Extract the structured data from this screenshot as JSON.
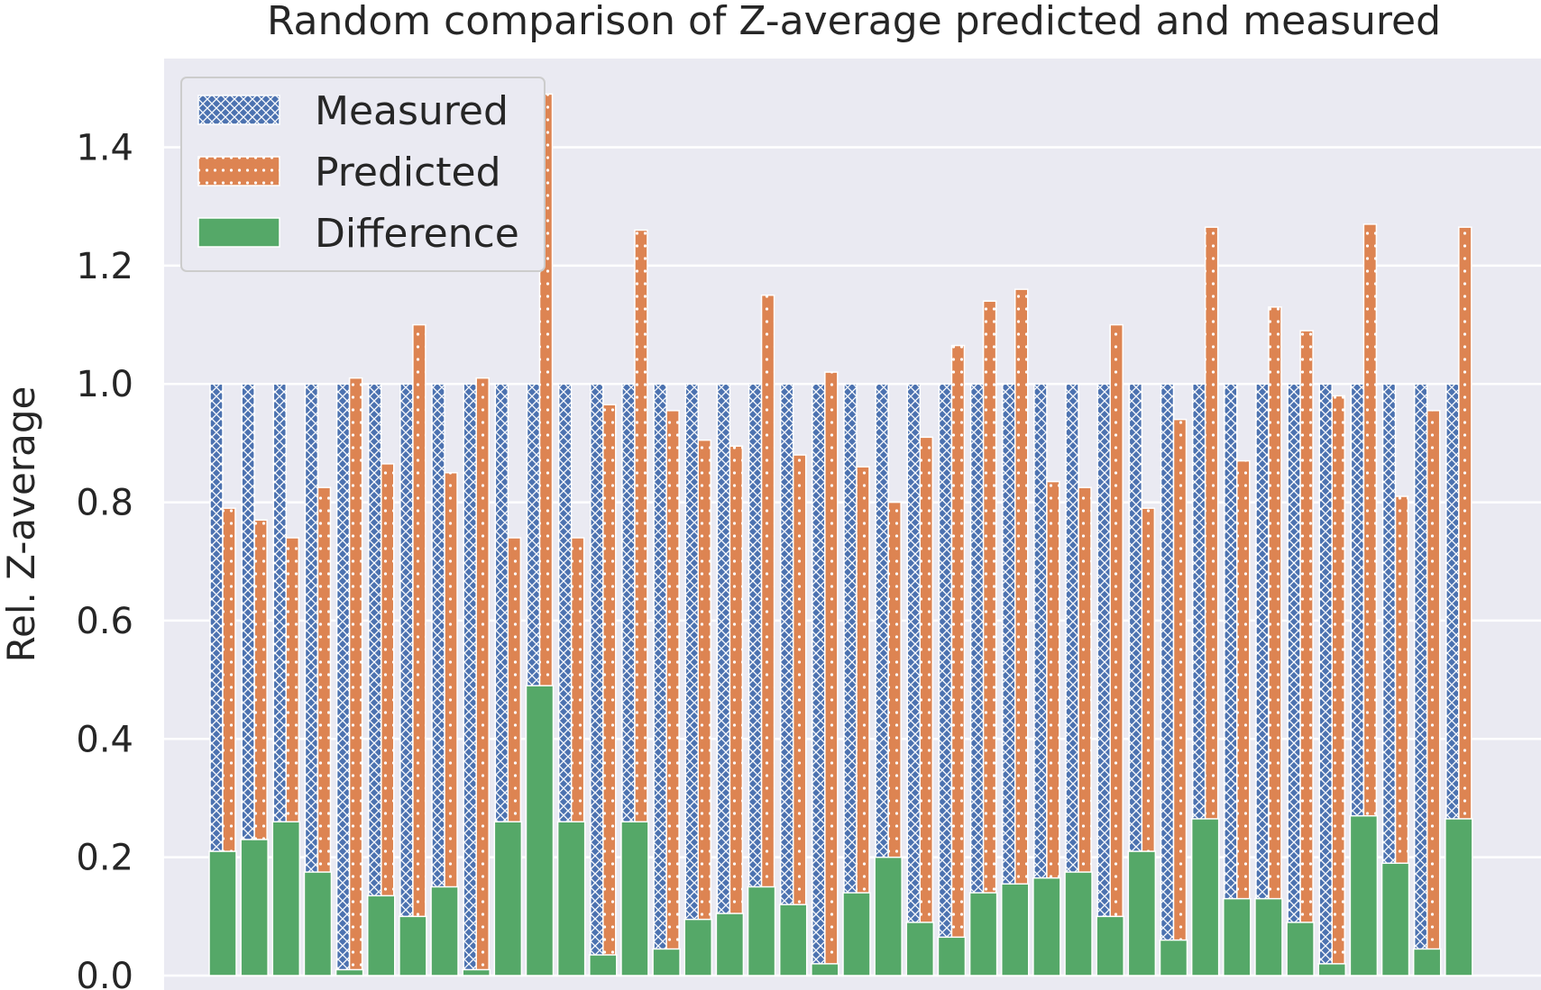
{
  "chart_data": {
    "type": "bar",
    "title": "Random comparison of Z-average predicted and measured",
    "xlabel": "",
    "ylabel": "Rel. Z-average",
    "ylim": [
      0,
      1.55
    ],
    "yticks": [
      "0.0",
      "0.2",
      "0.4",
      "0.6",
      "0.8",
      "1.0",
      "1.2",
      "1.4"
    ],
    "grid": true,
    "legend_position": "top-left",
    "n_samples": 40,
    "series": [
      {
        "name": "Measured",
        "color": "#4c72b0",
        "hatch": "crosshatch",
        "values": [
          1.0,
          1.0,
          1.0,
          1.0,
          1.0,
          1.0,
          1.0,
          1.0,
          1.0,
          1.0,
          1.0,
          1.0,
          1.0,
          1.0,
          1.0,
          1.0,
          1.0,
          1.0,
          1.0,
          1.0,
          1.0,
          1.0,
          1.0,
          1.0,
          1.0,
          1.0,
          1.0,
          1.0,
          1.0,
          1.0,
          1.0,
          1.0,
          1.0,
          1.0,
          1.0,
          1.0,
          1.0,
          1.0,
          1.0,
          1.0
        ]
      },
      {
        "name": "Predicted",
        "color": "#dd8452",
        "hatch": "dots",
        "values": [
          0.79,
          0.77,
          0.74,
          0.825,
          1.01,
          0.865,
          1.1,
          0.85,
          1.01,
          0.74,
          1.49,
          0.74,
          0.965,
          1.26,
          0.955,
          0.905,
          0.895,
          1.15,
          0.88,
          1.02,
          0.86,
          0.8,
          0.91,
          1.065,
          1.14,
          1.16,
          0.835,
          0.825,
          1.1,
          0.79,
          0.94,
          1.265,
          0.87,
          1.13,
          1.09,
          0.98,
          1.27,
          0.81,
          0.955,
          1.265
        ]
      },
      {
        "name": "Difference",
        "color": "#55a868",
        "hatch": "none",
        "values": [
          0.21,
          0.23,
          0.26,
          0.175,
          0.01,
          0.135,
          0.1,
          0.15,
          0.01,
          0.26,
          0.49,
          0.26,
          0.035,
          0.26,
          0.045,
          0.095,
          0.105,
          0.15,
          0.12,
          0.02,
          0.14,
          0.2,
          0.09,
          0.065,
          0.14,
          0.155,
          0.165,
          0.175,
          0.1,
          0.21,
          0.06,
          0.265,
          0.13,
          0.13,
          0.09,
          0.02,
          0.27,
          0.19,
          0.045,
          0.265
        ]
      }
    ]
  }
}
